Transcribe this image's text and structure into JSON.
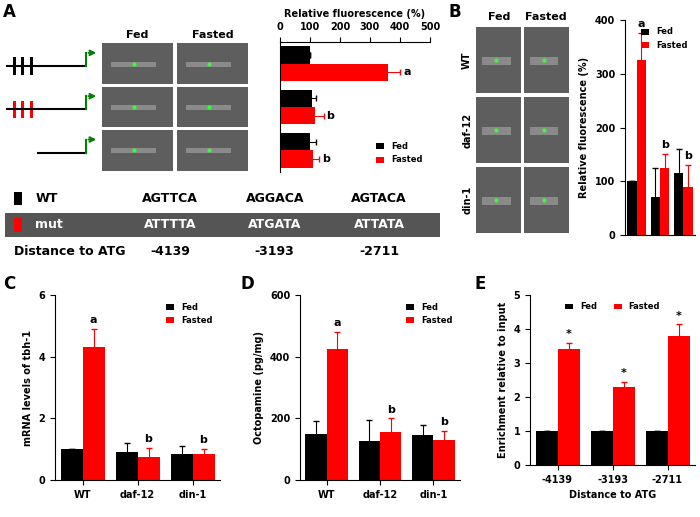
{
  "panel_labels": [
    "A",
    "B",
    "C",
    "D",
    "E"
  ],
  "panel_A_images": {
    "columns": [
      "Fed",
      "Fasted"
    ]
  },
  "panel_A_table": {
    "rows": [
      {
        "label": "WT",
        "sequences": [
          "AGTTCA",
          "AGGACA",
          "AGTACA"
        ]
      },
      {
        "label": "mut",
        "sequences": [
          "ATTTTA",
          "ATGATA",
          "ATTATA"
        ]
      }
    ],
    "distance_label": "Distance to ATG",
    "distances": [
      "-4139",
      "-3193",
      "-2711"
    ]
  },
  "panel_B_images": {
    "columns": [
      "Fed",
      "Fasted"
    ],
    "rows": [
      "WT",
      "daf-12",
      "din-1"
    ]
  },
  "chart_data": [
    {
      "type": "bar",
      "orientation": "horizontal",
      "categories": [
        null,
        null,
        null
      ],
      "xlabel": "Relative fluorescence (%)",
      "xlim": [
        0,
        500
      ],
      "xticks": [
        0,
        100,
        200,
        300,
        400,
        500
      ],
      "legend": "lower right",
      "tick_labels": "x",
      "series": [
        {
          "name": "Fed",
          "color": "#000000",
          "values": [
            100,
            105,
            100
          ],
          "errors": [
            0,
            15,
            20
          ]
        },
        {
          "name": "Fasted",
          "color": "#ff0000",
          "values": [
            360,
            115,
            110
          ],
          "errors": [
            40,
            30,
            20
          ],
          "annotations": [
            "a",
            "b",
            "b"
          ]
        }
      ]
    },
    {
      "type": "bar",
      "categories": [
        null,
        null,
        null
      ],
      "ylabel": "Relative fluorescence (%)",
      "ylim": [
        0,
        400
      ],
      "yticks": [
        0,
        100,
        200,
        300,
        400
      ],
      "legend": "upper right",
      "tick_labels": "y",
      "series": [
        {
          "name": "Fed",
          "color": "#000000",
          "values": [
            100,
            70,
            115
          ],
          "errors": [
            0,
            55,
            45
          ]
        },
        {
          "name": "Fasted",
          "color": "#ff0000",
          "values": [
            325,
            125,
            90
          ],
          "errors": [
            50,
            25,
            40
          ],
          "annotations": [
            "a",
            "b",
            "b"
          ]
        }
      ]
    },
    {
      "type": "bar",
      "categories": [
        "WT",
        "daf-12",
        "din-1"
      ],
      "ylabel": "mRNA levels of tbh-1",
      "ylim": [
        0,
        6
      ],
      "yticks": [
        0,
        2,
        4,
        6
      ],
      "legend": "upper right",
      "series": [
        {
          "name": "Fed",
          "color": "#000000",
          "values": [
            1,
            0.9,
            0.85
          ],
          "errors": [
            0,
            0.3,
            0.25
          ]
        },
        {
          "name": "Fasted",
          "color": "#ff0000",
          "values": [
            4.3,
            0.75,
            0.85
          ],
          "errors": [
            0.6,
            0.3,
            0.15
          ],
          "annotations": [
            "a",
            "b",
            "b"
          ]
        }
      ]
    },
    {
      "type": "bar",
      "categories": [
        "WT",
        "daf-12",
        "din-1"
      ],
      "ylabel": "Octopamine (pg/mg)",
      "ylim": [
        0,
        600
      ],
      "yticks": [
        0,
        200,
        400,
        600
      ],
      "legend": "upper right",
      "series": [
        {
          "name": "Fed",
          "color": "#000000",
          "values": [
            150,
            125,
            145
          ],
          "errors": [
            40,
            70,
            35
          ]
        },
        {
          "name": "Fasted",
          "color": "#ff0000",
          "values": [
            425,
            155,
            130
          ],
          "errors": [
            55,
            45,
            30
          ],
          "annotations": [
            "a",
            "b",
            "b"
          ]
        }
      ]
    },
    {
      "type": "bar",
      "categories": [
        "-4139",
        "-3193",
        "-2711"
      ],
      "xlabel": "Distance to ATG",
      "ylabel": "Enrichment relative to input",
      "ylim": [
        0,
        5
      ],
      "yticks": [
        0,
        1,
        2,
        3,
        4,
        5
      ],
      "legend": "upper center",
      "series": [
        {
          "name": "Fed",
          "color": "#000000",
          "values": [
            1,
            1,
            1
          ],
          "errors": [
            0,
            0,
            0
          ]
        },
        {
          "name": "Fasted",
          "color": "#ff0000",
          "values": [
            3.4,
            2.3,
            3.8
          ],
          "errors": [
            0.2,
            0.15,
            0.35
          ],
          "annotations": [
            "*",
            "*",
            "*"
          ]
        }
      ]
    }
  ]
}
